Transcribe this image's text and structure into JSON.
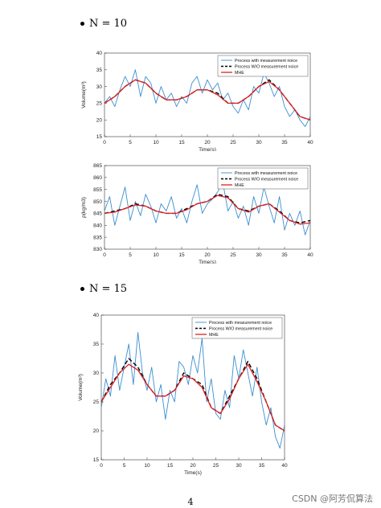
{
  "sections": [
    {
      "label": "N = 10"
    },
    {
      "label": "N = 15"
    }
  ],
  "page_number": "4",
  "watermark": "CSDN @阿芳侃算法",
  "colors": {
    "measurement": "#3a8fd0",
    "without": "#000000",
    "mhe": "#e02020"
  },
  "chart_data": [
    {
      "type": "line",
      "xlabel": "Time(s)",
      "ylabel": "Volume(m³)",
      "xlim": [
        0,
        40
      ],
      "ylim": [
        15,
        40
      ],
      "xticks": [
        0,
        5,
        10,
        15,
        20,
        25,
        30,
        35,
        40
      ],
      "yticks": [
        15,
        20,
        25,
        30,
        35,
        40
      ],
      "legend": {
        "placement": "top-right",
        "entries": [
          "Process with measurement noice",
          "Process W/O measurement noice",
          "MHE"
        ]
      },
      "series": [
        {
          "name": "Process with measurement noice",
          "x": [
            0,
            1,
            2,
            3,
            4,
            5,
            6,
            7,
            8,
            9,
            10,
            11,
            12,
            13,
            14,
            15,
            16,
            17,
            18,
            19,
            20,
            21,
            22,
            23,
            24,
            25,
            26,
            27,
            28,
            29,
            30,
            31,
            32,
            33,
            34,
            35,
            36,
            37,
            38,
            39,
            40
          ],
          "values": [
            25,
            27,
            24,
            29,
            33,
            30,
            35,
            27,
            33,
            31,
            25,
            30,
            26,
            28,
            24,
            27,
            25,
            31,
            33,
            28,
            32,
            29,
            31,
            26,
            28,
            24,
            22,
            26,
            23,
            30,
            28,
            34,
            31,
            27,
            30,
            24,
            21,
            23,
            20,
            18,
            21
          ]
        },
        {
          "name": "Process W/O measurement noice",
          "x": [
            0,
            2,
            4,
            6,
            8,
            10,
            12,
            14,
            16,
            18,
            20,
            22,
            24,
            26,
            28,
            30,
            32,
            34,
            36,
            38,
            40
          ],
          "values": [
            25,
            27,
            30,
            32,
            31,
            28,
            26,
            26,
            27,
            29,
            29,
            28,
            25,
            25,
            27,
            30,
            32,
            29,
            25,
            21,
            20
          ]
        },
        {
          "name": "MHE",
          "x": [
            0,
            2,
            4,
            6,
            8,
            10,
            12,
            14,
            16,
            18,
            20,
            22,
            24,
            26,
            28,
            30,
            32,
            34,
            36,
            38,
            40
          ],
          "values": [
            25,
            27,
            30,
            32,
            31,
            28,
            26,
            26,
            27,
            29,
            29,
            27.5,
            25,
            25,
            27,
            30,
            31.5,
            29,
            25,
            21,
            20
          ]
        }
      ]
    },
    {
      "type": "line",
      "xlabel": "Time(s)",
      "ylabel": "ρ(kg/m3)",
      "xlim": [
        0,
        40
      ],
      "ylim": [
        830,
        865
      ],
      "xticks": [
        0,
        5,
        10,
        15,
        20,
        25,
        30,
        35,
        40
      ],
      "yticks": [
        830,
        835,
        840,
        845,
        850,
        855,
        860,
        865
      ],
      "legend": {
        "placement": "top-right",
        "entries": [
          "Process with measurement noice",
          "Process W/O measurement noice",
          "MHE"
        ]
      },
      "series": [
        {
          "name": "Process with measurement noice",
          "x": [
            0,
            1,
            2,
            3,
            4,
            5,
            6,
            7,
            8,
            9,
            10,
            11,
            12,
            13,
            14,
            15,
            16,
            17,
            18,
            19,
            20,
            21,
            22,
            23,
            24,
            25,
            26,
            27,
            28,
            29,
            30,
            31,
            32,
            33,
            34,
            35,
            36,
            37,
            38,
            39,
            40
          ],
          "values": [
            846,
            852,
            840,
            848,
            856,
            842,
            850,
            844,
            853,
            848,
            841,
            849,
            846,
            852,
            843,
            847,
            841,
            850,
            857,
            845,
            849,
            851,
            854,
            858,
            846,
            850,
            843,
            848,
            840,
            852,
            845,
            856,
            848,
            841,
            852,
            838,
            845,
            840,
            846,
            836,
            842
          ]
        },
        {
          "name": "Process W/O measurement noice",
          "x": [
            0,
            2,
            4,
            6,
            8,
            10,
            12,
            14,
            16,
            18,
            20,
            22,
            24,
            26,
            28,
            30,
            32,
            34,
            36,
            38,
            40
          ],
          "values": [
            845,
            846,
            847,
            849,
            848,
            846,
            845,
            845,
            847,
            849,
            850,
            853,
            852,
            847,
            846,
            848,
            849,
            846,
            842,
            841,
            842
          ]
        },
        {
          "name": "MHE",
          "x": [
            0,
            2,
            4,
            6,
            8,
            10,
            12,
            14,
            16,
            18,
            20,
            22,
            24,
            26,
            28,
            30,
            32,
            34,
            36,
            38,
            40
          ],
          "values": [
            845,
            845.5,
            847,
            848.5,
            848,
            846,
            845,
            845,
            846.5,
            849,
            850,
            852.5,
            851.5,
            847,
            845.5,
            848,
            849,
            845.5,
            842,
            840.5,
            841
          ]
        }
      ]
    },
    {
      "type": "line",
      "xlabel": "Time(s)",
      "ylabel": "Volume(m³)",
      "xlim": [
        0,
        40
      ],
      "ylim": [
        15,
        40
      ],
      "xticks": [
        0,
        5,
        10,
        15,
        20,
        25,
        30,
        35,
        40
      ],
      "yticks": [
        15,
        20,
        25,
        30,
        35,
        40
      ],
      "legend": {
        "placement": "top-right",
        "entries": [
          "Process with measurement noice",
          "Process W/O measurement noice",
          "MHE"
        ]
      },
      "series": [
        {
          "name": "Process with measurement noice",
          "x": [
            0,
            1,
            2,
            3,
            4,
            5,
            6,
            7,
            8,
            9,
            10,
            11,
            12,
            13,
            14,
            15,
            16,
            17,
            18,
            19,
            20,
            21,
            22,
            23,
            24,
            25,
            26,
            27,
            28,
            29,
            30,
            31,
            32,
            33,
            34,
            35,
            36,
            37,
            38,
            39,
            40
          ],
          "values": [
            24,
            29,
            26,
            33,
            27,
            31,
            35,
            28,
            37,
            30,
            27,
            31,
            25,
            28,
            22,
            27,
            25,
            32,
            31,
            28,
            33,
            30,
            36,
            25,
            29,
            23,
            22,
            27,
            24,
            33,
            29,
            34,
            30,
            26,
            31,
            25,
            21,
            24,
            19,
            17,
            21
          ]
        },
        {
          "name": "Process W/O measurement noice",
          "x": [
            0,
            2,
            4,
            6,
            8,
            10,
            12,
            14,
            16,
            18,
            20,
            22,
            24,
            26,
            28,
            30,
            32,
            34,
            36,
            38,
            40
          ],
          "values": [
            25,
            28,
            30,
            32.5,
            31,
            28,
            26,
            26,
            27,
            30,
            29,
            28,
            24,
            23,
            26,
            29,
            32,
            29,
            25,
            21,
            20
          ]
        },
        {
          "name": "MHE",
          "x": [
            0,
            2,
            4,
            6,
            8,
            10,
            12,
            14,
            16,
            18,
            20,
            22,
            24,
            26,
            28,
            30,
            32,
            34,
            36,
            38,
            40
          ],
          "values": [
            25,
            27.5,
            30,
            31.5,
            30.5,
            28,
            26,
            26,
            27,
            29.5,
            29,
            27.5,
            24,
            23,
            25.5,
            29,
            31.5,
            28.5,
            25,
            21,
            20
          ]
        }
      ]
    }
  ]
}
